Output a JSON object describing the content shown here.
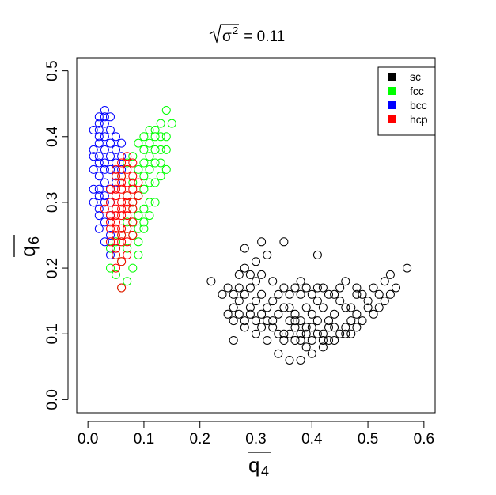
{
  "chart_data": {
    "type": "scatter",
    "title": {
      "radicand_base": "σ",
      "radicand_exp": "2",
      "value_text": " = 0.11"
    },
    "xlabel": "q",
    "xlabel_sub": "4",
    "ylabel": "q",
    "ylabel_sub": "6",
    "xlim": [
      -0.02,
      0.62
    ],
    "ylim": [
      -0.02,
      0.52
    ],
    "xticks": [
      0.0,
      0.1,
      0.2,
      0.3,
      0.4,
      0.5,
      0.6
    ],
    "xtick_labels": [
      "0.0",
      "0.1",
      "0.2",
      "0.3",
      "0.4",
      "0.5",
      "0.6"
    ],
    "yticks": [
      0.0,
      0.1,
      0.2,
      0.3,
      0.4,
      0.5
    ],
    "ytick_labels": [
      "0.0",
      "0.1",
      "0.2",
      "0.3",
      "0.4",
      "0.5"
    ],
    "marker": "open-circle",
    "legend_position": "top-right",
    "series": [
      {
        "name": "sc",
        "color": "#000000",
        "points": [
          [
            0.4,
            0.13
          ],
          [
            0.38,
            0.12
          ],
          [
            0.42,
            0.14
          ],
          [
            0.39,
            0.1
          ],
          [
            0.41,
            0.15
          ],
          [
            0.37,
            0.11
          ],
          [
            0.43,
            0.12
          ],
          [
            0.36,
            0.14
          ],
          [
            0.44,
            0.13
          ],
          [
            0.35,
            0.1
          ],
          [
            0.45,
            0.15
          ],
          [
            0.33,
            0.12
          ],
          [
            0.47,
            0.14
          ],
          [
            0.31,
            0.11
          ],
          [
            0.49,
            0.16
          ],
          [
            0.29,
            0.13
          ],
          [
            0.51,
            0.17
          ],
          [
            0.27,
            0.15
          ],
          [
            0.53,
            0.18
          ],
          [
            0.25,
            0.17
          ],
          [
            0.22,
            0.18
          ],
          [
            0.24,
            0.16
          ],
          [
            0.26,
            0.14
          ],
          [
            0.28,
            0.12
          ],
          [
            0.3,
            0.1
          ],
          [
            0.32,
            0.09
          ],
          [
            0.34,
            0.07
          ],
          [
            0.36,
            0.06
          ],
          [
            0.38,
            0.06
          ],
          [
            0.4,
            0.07
          ],
          [
            0.42,
            0.08
          ],
          [
            0.44,
            0.09
          ],
          [
            0.46,
            0.11
          ],
          [
            0.48,
            0.13
          ],
          [
            0.5,
            0.15
          ],
          [
            0.52,
            0.16
          ],
          [
            0.54,
            0.19
          ],
          [
            0.55,
            0.17
          ],
          [
            0.57,
            0.2
          ],
          [
            0.31,
            0.24
          ],
          [
            0.35,
            0.24
          ],
          [
            0.28,
            0.23
          ],
          [
            0.3,
            0.21
          ],
          [
            0.32,
            0.22
          ],
          [
            0.41,
            0.22
          ],
          [
            0.29,
            0.19
          ],
          [
            0.33,
            0.18
          ],
          [
            0.27,
            0.17
          ],
          [
            0.26,
            0.09
          ],
          [
            0.28,
            0.11
          ],
          [
            0.38,
            0.16
          ],
          [
            0.39,
            0.14
          ],
          [
            0.4,
            0.11
          ],
          [
            0.41,
            0.12
          ],
          [
            0.42,
            0.1
          ],
          [
            0.43,
            0.11
          ],
          [
            0.37,
            0.13
          ],
          [
            0.36,
            0.12
          ],
          [
            0.35,
            0.14
          ],
          [
            0.34,
            0.13
          ],
          [
            0.46,
            0.14
          ],
          [
            0.47,
            0.12
          ],
          [
            0.48,
            0.16
          ],
          [
            0.45,
            0.17
          ],
          [
            0.44,
            0.16
          ],
          [
            0.43,
            0.16
          ],
          [
            0.39,
            0.17
          ],
          [
            0.38,
            0.18
          ],
          [
            0.37,
            0.17
          ],
          [
            0.36,
            0.16
          ],
          [
            0.33,
            0.15
          ],
          [
            0.32,
            0.14
          ],
          [
            0.31,
            0.16
          ],
          [
            0.3,
            0.15
          ],
          [
            0.29,
            0.14
          ],
          [
            0.34,
            0.16
          ],
          [
            0.35,
            0.17
          ],
          [
            0.4,
            0.16
          ],
          [
            0.41,
            0.17
          ],
          [
            0.42,
            0.17
          ],
          [
            0.38,
            0.09
          ],
          [
            0.39,
            0.08
          ],
          [
            0.37,
            0.09
          ],
          [
            0.36,
            0.1
          ],
          [
            0.35,
            0.09
          ],
          [
            0.34,
            0.1
          ],
          [
            0.33,
            0.11
          ],
          [
            0.32,
            0.12
          ],
          [
            0.31,
            0.13
          ],
          [
            0.3,
            0.12
          ],
          [
            0.45,
            0.1
          ],
          [
            0.46,
            0.1
          ],
          [
            0.44,
            0.11
          ],
          [
            0.43,
            0.09
          ],
          [
            0.42,
            0.09
          ],
          [
            0.41,
            0.1
          ],
          [
            0.4,
            0.09
          ],
          [
            0.39,
            0.11
          ],
          [
            0.38,
            0.1
          ],
          [
            0.37,
            0.12
          ],
          [
            0.5,
            0.14
          ],
          [
            0.51,
            0.13
          ],
          [
            0.49,
            0.12
          ],
          [
            0.48,
            0.11
          ],
          [
            0.47,
            0.1
          ],
          [
            0.52,
            0.14
          ],
          [
            0.53,
            0.15
          ],
          [
            0.54,
            0.16
          ],
          [
            0.48,
            0.17
          ],
          [
            0.46,
            0.18
          ],
          [
            0.3,
            0.18
          ],
          [
            0.31,
            0.19
          ],
          [
            0.29,
            0.17
          ],
          [
            0.28,
            0.16
          ],
          [
            0.27,
            0.13
          ],
          [
            0.26,
            0.12
          ],
          [
            0.25,
            0.13
          ],
          [
            0.26,
            0.16
          ],
          [
            0.27,
            0.19
          ],
          [
            0.28,
            0.2
          ]
        ]
      },
      {
        "name": "fcc",
        "color": "#00ff00",
        "points": [
          [
            0.1,
            0.38
          ],
          [
            0.11,
            0.39
          ],
          [
            0.12,
            0.4
          ],
          [
            0.1,
            0.36
          ],
          [
            0.09,
            0.35
          ],
          [
            0.11,
            0.37
          ],
          [
            0.12,
            0.41
          ],
          [
            0.13,
            0.42
          ],
          [
            0.14,
            0.44
          ],
          [
            0.08,
            0.33
          ],
          [
            0.09,
            0.31
          ],
          [
            0.1,
            0.34
          ],
          [
            0.08,
            0.29
          ],
          [
            0.07,
            0.27
          ],
          [
            0.08,
            0.25
          ],
          [
            0.07,
            0.23
          ],
          [
            0.06,
            0.21
          ],
          [
            0.05,
            0.19
          ],
          [
            0.04,
            0.2
          ],
          [
            0.05,
            0.22
          ],
          [
            0.09,
            0.24
          ],
          [
            0.1,
            0.26
          ],
          [
            0.11,
            0.3
          ],
          [
            0.12,
            0.33
          ],
          [
            0.13,
            0.36
          ],
          [
            0.14,
            0.38
          ],
          [
            0.15,
            0.42
          ],
          [
            0.13,
            0.4
          ],
          [
            0.12,
            0.38
          ],
          [
            0.11,
            0.35
          ],
          [
            0.1,
            0.32
          ],
          [
            0.09,
            0.28
          ],
          [
            0.08,
            0.3
          ],
          [
            0.07,
            0.31
          ],
          [
            0.06,
            0.34
          ],
          [
            0.07,
            0.36
          ],
          [
            0.08,
            0.37
          ],
          [
            0.09,
            0.39
          ],
          [
            0.1,
            0.4
          ],
          [
            0.11,
            0.41
          ],
          [
            0.08,
            0.2
          ],
          [
            0.07,
            0.18
          ],
          [
            0.06,
            0.17
          ],
          [
            0.09,
            0.22
          ],
          [
            0.1,
            0.29
          ],
          [
            0.11,
            0.33
          ],
          [
            0.12,
            0.36
          ],
          [
            0.13,
            0.38
          ],
          [
            0.14,
            0.4
          ],
          [
            0.12,
            0.3
          ],
          [
            0.11,
            0.28
          ],
          [
            0.1,
            0.27
          ],
          [
            0.09,
            0.26
          ],
          [
            0.08,
            0.27
          ],
          [
            0.07,
            0.26
          ],
          [
            0.06,
            0.25
          ],
          [
            0.05,
            0.24
          ],
          [
            0.04,
            0.23
          ],
          [
            0.13,
            0.34
          ],
          [
            0.14,
            0.35
          ]
        ]
      },
      {
        "name": "bcc",
        "color": "#0000ff",
        "points": [
          [
            0.03,
            0.43
          ],
          [
            0.02,
            0.42
          ],
          [
            0.04,
            0.41
          ],
          [
            0.03,
            0.4
          ],
          [
            0.02,
            0.39
          ],
          [
            0.01,
            0.38
          ],
          [
            0.02,
            0.37
          ],
          [
            0.03,
            0.36
          ],
          [
            0.04,
            0.35
          ],
          [
            0.05,
            0.36
          ],
          [
            0.01,
            0.35
          ],
          [
            0.02,
            0.34
          ],
          [
            0.03,
            0.33
          ],
          [
            0.04,
            0.32
          ],
          [
            0.02,
            0.31
          ],
          [
            0.01,
            0.32
          ],
          [
            0.03,
            0.3
          ],
          [
            0.02,
            0.29
          ],
          [
            0.04,
            0.28
          ],
          [
            0.03,
            0.27
          ],
          [
            0.02,
            0.26
          ],
          [
            0.04,
            0.25
          ],
          [
            0.03,
            0.24
          ],
          [
            0.05,
            0.23
          ],
          [
            0.04,
            0.22
          ],
          [
            0.02,
            0.28
          ],
          [
            0.01,
            0.3
          ],
          [
            0.05,
            0.38
          ],
          [
            0.04,
            0.39
          ],
          [
            0.03,
            0.38
          ],
          [
            0.02,
            0.4
          ],
          [
            0.01,
            0.41
          ],
          [
            0.05,
            0.34
          ],
          [
            0.06,
            0.35
          ],
          [
            0.05,
            0.33
          ],
          [
            0.04,
            0.37
          ],
          [
            0.03,
            0.35
          ],
          [
            0.02,
            0.36
          ],
          [
            0.01,
            0.37
          ],
          [
            0.06,
            0.37
          ],
          [
            0.02,
            0.41
          ],
          [
            0.03,
            0.42
          ],
          [
            0.04,
            0.43
          ],
          [
            0.03,
            0.44
          ],
          [
            0.02,
            0.43
          ],
          [
            0.05,
            0.4
          ],
          [
            0.06,
            0.39
          ],
          [
            0.04,
            0.3
          ],
          [
            0.03,
            0.31
          ],
          [
            0.02,
            0.32
          ]
        ]
      },
      {
        "name": "hcp",
        "color": "#ff0000",
        "points": [
          [
            0.06,
            0.3
          ],
          [
            0.05,
            0.29
          ],
          [
            0.07,
            0.31
          ],
          [
            0.06,
            0.28
          ],
          [
            0.05,
            0.27
          ],
          [
            0.07,
            0.29
          ],
          [
            0.08,
            0.32
          ],
          [
            0.06,
            0.33
          ],
          [
            0.05,
            0.34
          ],
          [
            0.07,
            0.35
          ],
          [
            0.08,
            0.36
          ],
          [
            0.06,
            0.36
          ],
          [
            0.05,
            0.31
          ],
          [
            0.04,
            0.3
          ],
          [
            0.04,
            0.28
          ],
          [
            0.05,
            0.26
          ],
          [
            0.06,
            0.25
          ],
          [
            0.07,
            0.26
          ],
          [
            0.08,
            0.27
          ],
          [
            0.06,
            0.24
          ],
          [
            0.05,
            0.23
          ],
          [
            0.04,
            0.24
          ],
          [
            0.07,
            0.22
          ],
          [
            0.06,
            0.21
          ],
          [
            0.05,
            0.22
          ],
          [
            0.08,
            0.3
          ],
          [
            0.09,
            0.33
          ],
          [
            0.07,
            0.33
          ],
          [
            0.04,
            0.32
          ],
          [
            0.03,
            0.29
          ],
          [
            0.06,
            0.17
          ],
          [
            0.05,
            0.2
          ],
          [
            0.07,
            0.24
          ],
          [
            0.08,
            0.25
          ],
          [
            0.04,
            0.26
          ],
          [
            0.05,
            0.35
          ],
          [
            0.06,
            0.34
          ],
          [
            0.07,
            0.37
          ],
          [
            0.08,
            0.34
          ],
          [
            0.09,
            0.31
          ],
          [
            0.04,
            0.27
          ],
          [
            0.05,
            0.28
          ],
          [
            0.06,
            0.29
          ],
          [
            0.07,
            0.28
          ],
          [
            0.08,
            0.29
          ],
          [
            0.06,
            0.32
          ],
          [
            0.05,
            0.32
          ],
          [
            0.07,
            0.3
          ],
          [
            0.06,
            0.26
          ],
          [
            0.05,
            0.25
          ]
        ]
      }
    ]
  }
}
